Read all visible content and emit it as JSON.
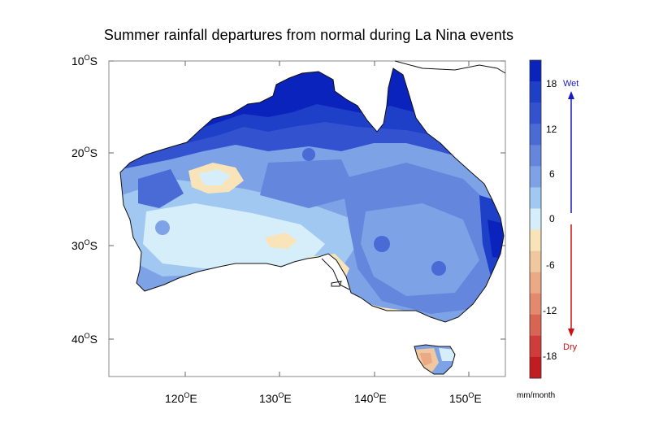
{
  "title": "Summer rainfall departures from normal during La Nina events",
  "map": {
    "lat_labels": [
      {
        "deg": "10",
        "sup": "O",
        "hemi": "S"
      },
      {
        "deg": "20",
        "sup": "O",
        "hemi": "S"
      },
      {
        "deg": "30",
        "sup": "O",
        "hemi": "S"
      },
      {
        "deg": "40",
        "sup": "O",
        "hemi": "S"
      }
    ],
    "lon_labels": [
      {
        "deg": "120",
        "sup": "O",
        "hemi": "E"
      },
      {
        "deg": "130",
        "sup": "O",
        "hemi": "E"
      },
      {
        "deg": "140",
        "sup": "O",
        "hemi": "E"
      },
      {
        "deg": "150",
        "sup": "O",
        "hemi": "E"
      }
    ]
  },
  "colorbar": {
    "tick_labels": [
      "18",
      "12",
      "6",
      "0",
      "-6",
      "-12",
      "-18"
    ],
    "colors": [
      "#0a23bd",
      "#1e3fc8",
      "#3252cf",
      "#4a6ad6",
      "#6486dd",
      "#7da3e6",
      "#a0c8f0",
      "#d6eefa",
      "#f8e4b8",
      "#f0c8a0",
      "#eaaa86",
      "#e38a6e",
      "#d86454",
      "#cf3c3a",
      "#c31b22"
    ],
    "wet_label": "Wet",
    "dry_label": "Dry",
    "units": "mm/month",
    "wet_color": "#1a1abf",
    "dry_color": "#cc1111"
  }
}
